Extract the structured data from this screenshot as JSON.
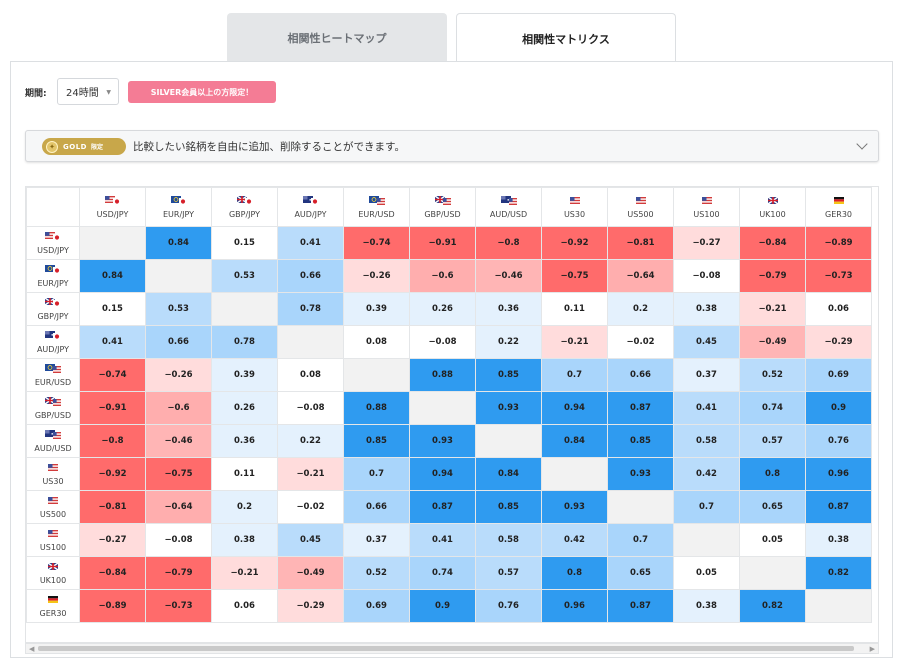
{
  "tabs": [
    {
      "label": "相関性ヒートマップ",
      "active": false
    },
    {
      "label": "相関性マトリクス",
      "active": true
    }
  ],
  "controls": {
    "period_label": "期間:",
    "period_value": "24時間",
    "silver_badge": "SILVER会員以上の方限定！"
  },
  "gold_bar": {
    "badge_word": "GOLD",
    "badge_suffix": "限定",
    "text": "比較したい銘柄を自由に追加、削除することができます。"
  },
  "colors": {
    "positive": "#2f9bf0",
    "negative": "#ff6b6b",
    "diagonal": "#f2f2f2",
    "silver_badge": "#f47c95",
    "gold": "#c8a74a"
  },
  "matrix": {
    "symbols": [
      "USD/JPY",
      "EUR/JPY",
      "GBP/JPY",
      "AUD/JPY",
      "EUR/USD",
      "GBP/USD",
      "AUD/USD",
      "US30",
      "US500",
      "US100",
      "UK100",
      "GER30"
    ],
    "flags": [
      [
        "us",
        "jp"
      ],
      [
        "eu",
        "jp"
      ],
      [
        "uk",
        "jp"
      ],
      [
        "au",
        "jp"
      ],
      [
        "eu",
        "us"
      ],
      [
        "uk",
        "us"
      ],
      [
        "au",
        "us"
      ],
      [
        "us"
      ],
      [
        "us"
      ],
      [
        "us"
      ],
      [
        "uk"
      ],
      [
        "de"
      ]
    ],
    "values": [
      [
        null,
        0.84,
        0.15,
        0.41,
        -0.74,
        -0.91,
        -0.8,
        -0.92,
        -0.81,
        -0.27,
        -0.84,
        -0.89
      ],
      [
        0.84,
        null,
        0.53,
        0.66,
        -0.26,
        -0.6,
        -0.46,
        -0.75,
        -0.64,
        -0.08,
        -0.79,
        -0.73
      ],
      [
        0.15,
        0.53,
        null,
        0.78,
        0.39,
        0.26,
        0.36,
        0.11,
        0.2,
        0.38,
        -0.21,
        0.06
      ],
      [
        0.41,
        0.66,
        0.78,
        null,
        0.08,
        -0.08,
        0.22,
        -0.21,
        -0.02,
        0.45,
        -0.49,
        -0.29
      ],
      [
        -0.74,
        -0.26,
        0.39,
        0.08,
        null,
        0.88,
        0.85,
        0.7,
        0.66,
        0.37,
        0.52,
        0.69
      ],
      [
        -0.91,
        -0.6,
        0.26,
        -0.08,
        0.88,
        null,
        0.93,
        0.94,
        0.87,
        0.41,
        0.74,
        0.9
      ],
      [
        -0.8,
        -0.46,
        0.36,
        0.22,
        0.85,
        0.93,
        null,
        0.84,
        0.85,
        0.58,
        0.57,
        0.76
      ],
      [
        -0.92,
        -0.75,
        0.11,
        -0.21,
        0.7,
        0.94,
        0.84,
        null,
        0.93,
        0.42,
        0.8,
        0.96
      ],
      [
        -0.81,
        -0.64,
        0.2,
        -0.02,
        0.66,
        0.87,
        0.85,
        0.93,
        null,
        0.7,
        0.65,
        0.87
      ],
      [
        -0.27,
        -0.08,
        0.38,
        0.45,
        0.37,
        0.41,
        0.58,
        0.42,
        0.7,
        null,
        0.05,
        0.38
      ],
      [
        -0.84,
        -0.79,
        -0.21,
        -0.49,
        0.52,
        0.74,
        0.57,
        0.8,
        0.65,
        0.05,
        null,
        0.82
      ],
      [
        -0.89,
        -0.73,
        0.06,
        -0.29,
        0.69,
        0.9,
        0.76,
        0.96,
        0.87,
        0.38,
        0.82,
        null
      ]
    ]
  }
}
